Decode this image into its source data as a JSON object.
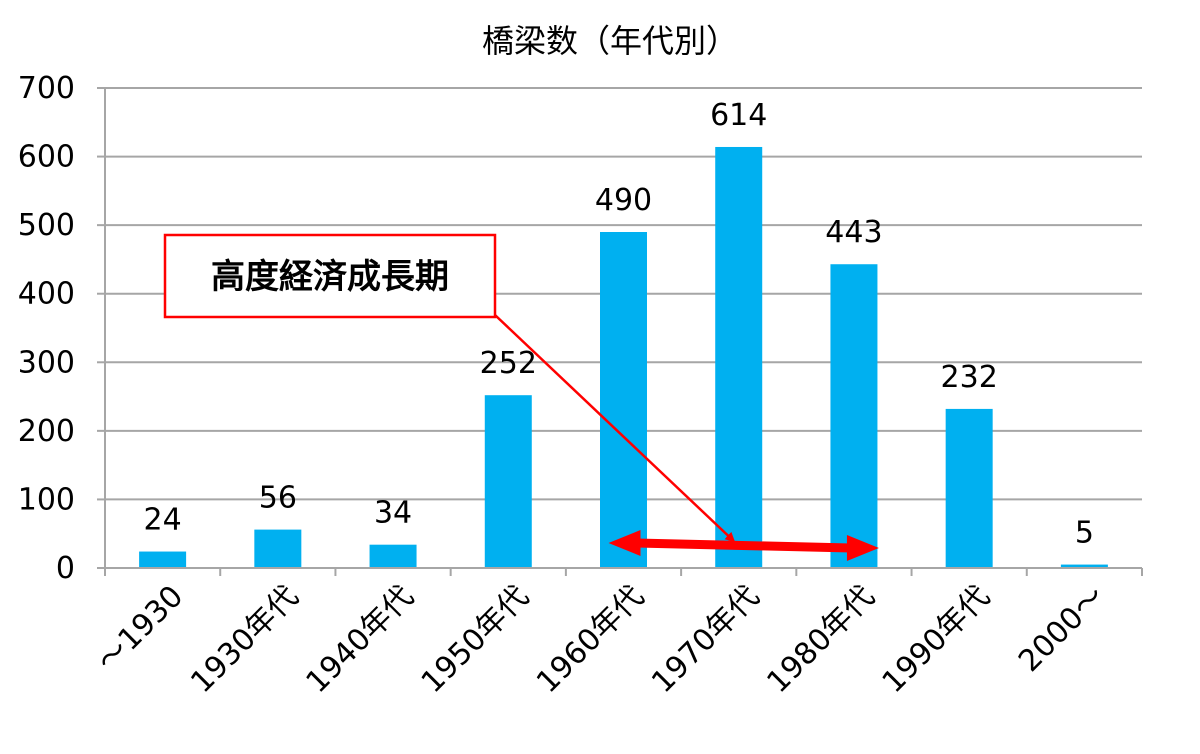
{
  "chart_data": {
    "type": "bar",
    "title": "橋梁数（年代別）",
    "xlabel": "",
    "ylabel": "",
    "categories": [
      "～1930",
      "1930年代",
      "1940年代",
      "1950年代",
      "1960年代",
      "1970年代",
      "1980年代",
      "1990年代",
      "2000～"
    ],
    "values": [
      24,
      56,
      34,
      252,
      490,
      614,
      443,
      232,
      5
    ],
    "ylim": [
      0,
      700
    ],
    "yticks": [
      0,
      100,
      200,
      300,
      400,
      500,
      600,
      700
    ],
    "grid": true,
    "bar_color": "#00b0f0",
    "annotation": {
      "text": "高度経済成長期",
      "border_color": "#ff0000",
      "arrow_color": "#ff0000",
      "span_from": "1960年代",
      "span_to": "1980年代",
      "points_to": "1970年代"
    }
  }
}
